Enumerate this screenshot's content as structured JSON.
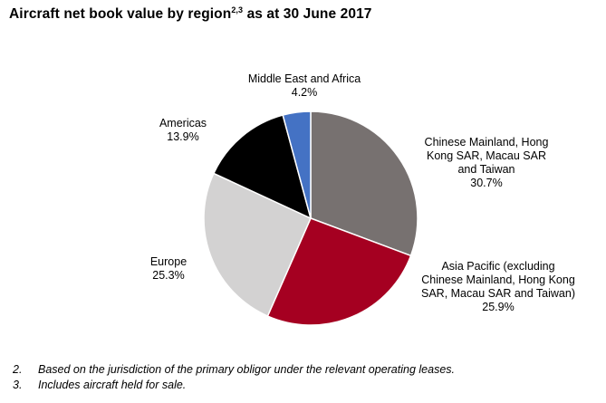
{
  "title": {
    "main": "Aircraft net book value by region",
    "superscript": "2,3",
    "suffix": "as at 30 June 2017"
  },
  "chart_data": {
    "type": "pie",
    "slices": [
      {
        "label_lines": [
          "Chinese Mainland, Hong",
          "Kong SAR, Macau SAR",
          "and Taiwan"
        ],
        "value": 30.7,
        "value_label": "30.7%",
        "color": "#777170"
      },
      {
        "label_lines": [
          "Asia Pacific (excluding",
          "Chinese Mainland, Hong Kong",
          "SAR, Macau SAR and Taiwan)"
        ],
        "value": 25.9,
        "value_label": "25.9%",
        "color": "#a50021"
      },
      {
        "label_lines": [
          "Europe"
        ],
        "value": 25.3,
        "value_label": "25.3%",
        "color": "#d3d2d2"
      },
      {
        "label_lines": [
          "Americas"
        ],
        "value": 13.9,
        "value_label": "13.9%",
        "color": "#000000"
      },
      {
        "label_lines": [
          "Middle East and Africa"
        ],
        "value": 4.2,
        "value_label": "4.2%",
        "color": "#4472c4"
      }
    ],
    "start": "12 o'clock",
    "direction": "clockwise"
  },
  "footnotes": [
    {
      "number": "2.",
      "text": "Based on the jurisdiction of the primary obligor under the relevant operating leases."
    },
    {
      "number": "3.",
      "text": "Includes aircraft held for sale."
    }
  ]
}
